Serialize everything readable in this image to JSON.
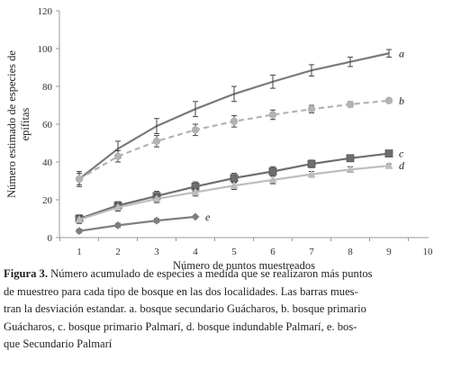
{
  "chart_data": {
    "type": "line",
    "xlabel": "Número de puntos muestreados",
    "ylabel_line1": "Número estimado de especies de",
    "ylabel_line2": "epífitas",
    "xlim": [
      1,
      10
    ],
    "ylim": [
      0,
      120
    ],
    "x_ticks": [
      "1",
      "2",
      "3",
      "4",
      "5",
      "6",
      "7",
      "8",
      "9",
      "10"
    ],
    "y_ticks": [
      "0",
      "20",
      "40",
      "60",
      "80",
      "100",
      "120"
    ],
    "grid": false,
    "series": [
      {
        "name": "a",
        "color": "#7a7a7a",
        "dash": false,
        "marker": "none",
        "x": [
          1,
          2,
          3,
          4,
          5,
          6,
          7,
          8,
          9
        ],
        "values": [
          31,
          47,
          59,
          68,
          76,
          82.5,
          88.5,
          93,
          97.5
        ],
        "errors": [
          4,
          4,
          4,
          4,
          4,
          3.5,
          3,
          2.5,
          2
        ]
      },
      {
        "name": "b",
        "color": "#b3b3b3",
        "dash": true,
        "marker": "circle",
        "x": [
          1,
          2,
          3,
          4,
          5,
          6,
          7,
          8,
          9
        ],
        "values": [
          31,
          43,
          51,
          57,
          61.5,
          65,
          68,
          70.5,
          72.5
        ],
        "errors": [
          3,
          3,
          3,
          3,
          3,
          2.5,
          2,
          1.5,
          1
        ]
      },
      {
        "name": "c",
        "color": "#6e6e6e",
        "dash": false,
        "marker": "square",
        "x": [
          1,
          2,
          3,
          4,
          5,
          6,
          7,
          8,
          9
        ],
        "values": [
          10,
          17,
          22,
          27,
          31.5,
          35,
          39,
          42,
          44.5
        ],
        "errors": [
          2,
          2,
          2.5,
          2.5,
          2.5,
          2.5,
          2,
          1.5,
          1
        ]
      },
      {
        "name": "d",
        "color": "#bdbdbd",
        "dash": false,
        "marker": "triangle",
        "x": [
          1,
          2,
          3,
          4,
          5,
          6,
          7,
          8,
          9
        ],
        "values": [
          9.5,
          16,
          20.5,
          24,
          27.5,
          30.5,
          33.5,
          36,
          38
        ],
        "errors": [
          2,
          2,
          2,
          2,
          2,
          2,
          1.5,
          1.5,
          1
        ]
      },
      {
        "name": "e",
        "color": "#7f7f7f",
        "dash": false,
        "marker": "diamond",
        "x": [
          1,
          2,
          3,
          4
        ],
        "values": [
          3.5,
          6.5,
          9,
          11
        ],
        "errors": [
          1,
          1,
          1,
          0
        ]
      }
    ]
  },
  "caption": {
    "figure_label": "Figura 3.",
    "line1_rest": " Número acumulado de especies a medida que se realizaron más puntos",
    "line2": "de muestreo para cada tipo de bosque en las dos localidades. Las barras mues-",
    "line3": "tran la desviación estandar. a. bosque secundario Guácharos, b. bosque primario",
    "line4": "Guácharos, c. bosque primario Palmarí, d. bosque indundable Palmarí, e. bos-",
    "line5": "que Secundario Palmarí"
  }
}
